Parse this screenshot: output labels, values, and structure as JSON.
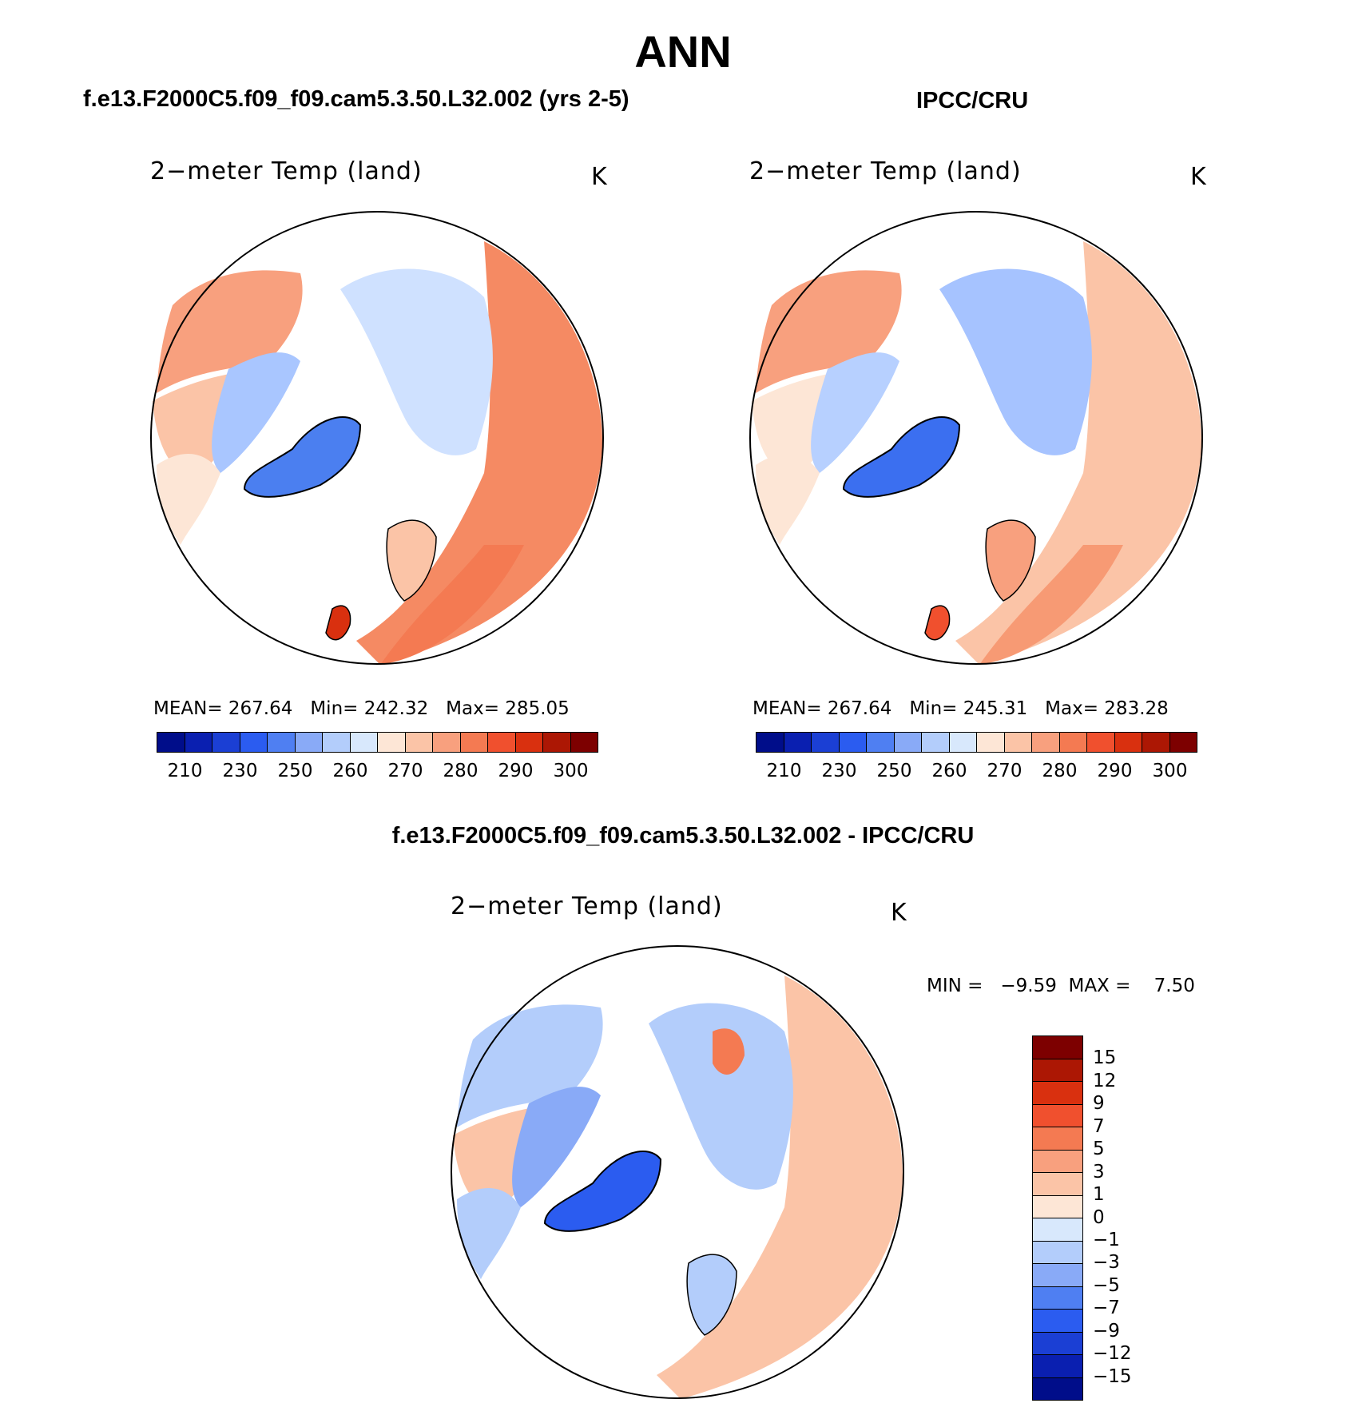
{
  "title": "ANN",
  "panels": [
    {
      "id": "model",
      "case_title": "f.e13.F2000C5.f09_f09.cam5.3.50.L32.002 (yrs 2-5)",
      "variable": "2−meter Temp (land)",
      "units": "K",
      "mean_label": "MEAN=",
      "mean": "267.64",
      "min_label": "Min=",
      "min": "242.32",
      "max_label": "Max=",
      "max": "285.05",
      "greenland_color": "#4b7ff0",
      "canada_color": "#a9c6ff",
      "siberia_color": "#cfe1ff",
      "europe_color": "#f58a63"
    },
    {
      "id": "obs",
      "case_title": "IPCC/CRU",
      "variable": "2−meter Temp (land)",
      "units": "K",
      "mean_label": "MEAN=",
      "mean": "267.64",
      "min_label": "Min=",
      "min": "245.31",
      "max_label": "Max=",
      "max": "283.28",
      "greenland_color": "#3b6ff0",
      "canada_color": "#b7d0ff",
      "siberia_color": "#a6c3ff",
      "europe_color": "#f79a74"
    }
  ],
  "abs_colorbar": {
    "colors": [
      "#000d8a",
      "#0a1fb0",
      "#1b3fd4",
      "#2b5cf0",
      "#4f7ff2",
      "#89aaf7",
      "#b3cdfb",
      "#d8e8fc",
      "#fde6d6",
      "#fbc4a7",
      "#f8a07e",
      "#f47a52",
      "#f0502e",
      "#d9300f",
      "#ac1704",
      "#7d0000"
    ],
    "ticks": [
      "210",
      "230",
      "250",
      "260",
      "270",
      "280",
      "290",
      "300"
    ]
  },
  "difference": {
    "title": "f.e13.F2000C5.f09_f09.cam5.3.50.L32.002 - IPCC/CRU",
    "variable": "2−meter Temp (land)",
    "units": "K",
    "min_label": "MIN =",
    "min": "−9.59",
    "max_label": "MAX =",
    "max": "7.50",
    "colorbar_colors": [
      "#7d0000",
      "#ac1704",
      "#d9300f",
      "#f0502e",
      "#f47a52",
      "#f8a07e",
      "#fbc4a7",
      "#fde6d6",
      "#d8e8fc",
      "#b3cdfb",
      "#89aaf7",
      "#4f7ff2",
      "#2b5cf0",
      "#1b3fd4",
      "#0a1fb0",
      "#000d8a"
    ],
    "colorbar_ticks": [
      "15",
      "12",
      "9",
      "7",
      "5",
      "3",
      "1",
      "0",
      "−1",
      "−3",
      "−5",
      "−7",
      "−9",
      "−12",
      "−15"
    ]
  }
}
